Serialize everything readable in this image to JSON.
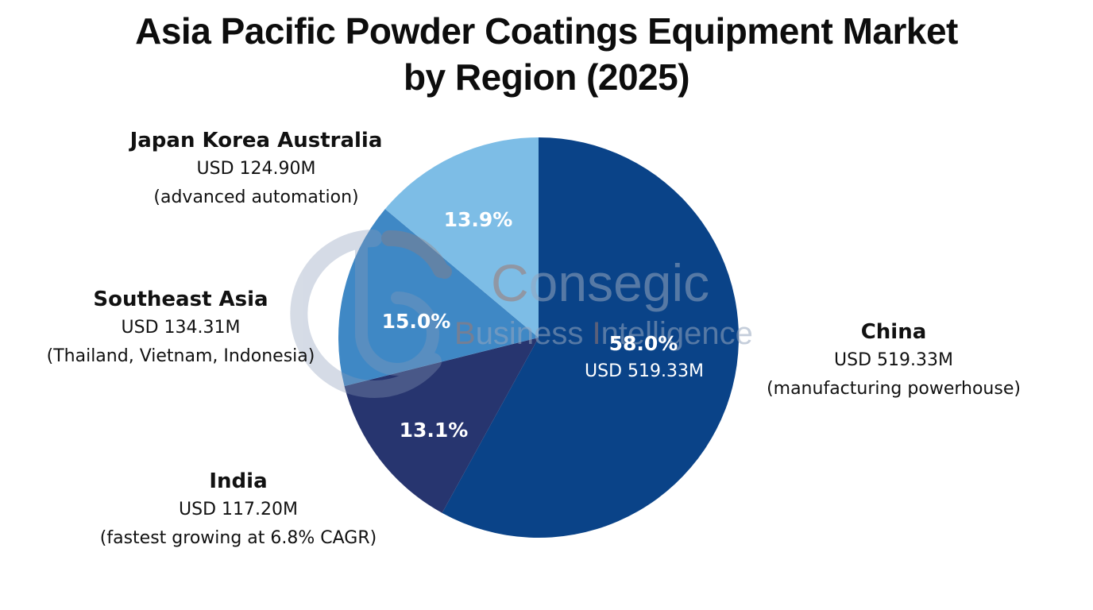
{
  "title": {
    "line1": "Asia Pacific Powder Coatings Equipment Market",
    "line2": "by Region (2025)"
  },
  "watermark": {
    "word1_first": "C",
    "word1_rest": "onsegic",
    "word2_b": "B",
    "word2_mid": "usiness ",
    "word2_i": "I",
    "word2_rest": "ntelligence"
  },
  "slices": [
    {
      "name": "China",
      "value_label": "USD 519.33M",
      "note": "(manufacturing powerhouse)",
      "pct_label": "58.0%",
      "inner_value": "USD 519.33M",
      "color": "#0A4388"
    },
    {
      "name": "India",
      "value_label": "USD 117.20M",
      "note": "(fastest growing at 6.8% CAGR)",
      "pct_label": "13.1%",
      "color": "#27356F"
    },
    {
      "name": "Southeast Asia",
      "value_label": "USD 134.31M",
      "note": "(Thailand, Vietnam, Indonesia)",
      "pct_label": "15.0%",
      "color": "#3F88C5"
    },
    {
      "name": "Japan Korea Australia",
      "value_label": "USD 124.90M",
      "note": "(advanced automation)",
      "pct_label": "13.9%",
      "color": "#7DBDE6"
    }
  ],
  "chart_data": {
    "type": "pie",
    "title": "Asia Pacific Powder Coatings Equipment Market by Region (2025)",
    "categories": [
      "China",
      "India",
      "Southeast Asia",
      "Japan Korea Australia"
    ],
    "values": [
      519.33,
      117.2,
      134.31,
      124.9
    ],
    "percentages": [
      58.0,
      13.1,
      15.0,
      13.9
    ],
    "unit": "USD Million",
    "annotations": {
      "China": "(manufacturing powerhouse)",
      "India": "(fastest growing at 6.8% CAGR)",
      "Southeast Asia": "(Thailand, Vietnam, Indonesia)",
      "Japan Korea Australia": "(advanced automation)"
    },
    "colors": [
      "#0A4388",
      "#27356F",
      "#3F88C5",
      "#7DBDE6"
    ],
    "start_angle": "12 o'clock, clockwise",
    "legend": "none (direct labels)"
  }
}
